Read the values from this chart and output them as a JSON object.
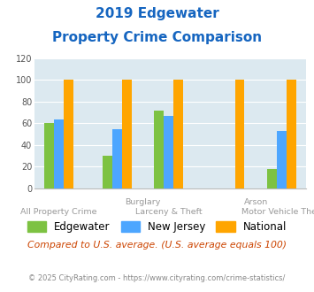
{
  "title_line1": "2019 Edgewater",
  "title_line2": "Property Crime Comparison",
  "x_top_labels": [
    "Burglary",
    "Arson"
  ],
  "x_bottom_labels": [
    "All Property Crime",
    "Larceny & Theft",
    "Motor Vehicle Theft"
  ],
  "edgewater": [
    60,
    30,
    72,
    0,
    18
  ],
  "new_jersey": [
    64,
    55,
    67,
    0,
    53
  ],
  "national": [
    100,
    100,
    100,
    100,
    100
  ],
  "color_edgewater": "#7dc242",
  "color_nj": "#4da6ff",
  "color_national": "#ffa500",
  "ylim": [
    0,
    120
  ],
  "yticks": [
    0,
    20,
    40,
    60,
    80,
    100,
    120
  ],
  "legend_labels": [
    "Edgewater",
    "New Jersey",
    "National"
  ],
  "footnote1": "Compared to U.S. average. (U.S. average equals 100)",
  "footnote2": "© 2025 CityRating.com - https://www.cityrating.com/crime-statistics/",
  "bg_color": "#dce9f0",
  "title_color": "#1565c0",
  "footnote1_color": "#cc4400",
  "footnote2_color": "#888888",
  "label_color": "#999999"
}
